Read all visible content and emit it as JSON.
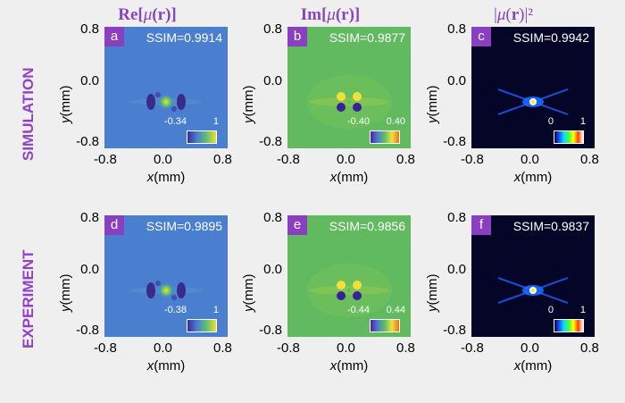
{
  "column_titles": [
    {
      "pre": "Re[",
      "sym": "μ",
      "mid": "(",
      "bold": "r",
      "post": ")]"
    },
    {
      "pre": "Im[",
      "sym": "μ",
      "mid": "(",
      "bold": "r",
      "post": ")]"
    },
    {
      "pre": "|",
      "sym": "μ",
      "mid": "(",
      "bold": "r",
      "post": ")|²"
    }
  ],
  "row_labels": [
    "SIMULATION",
    "EXPERIMENT"
  ],
  "axis": {
    "x_label_var": "x",
    "x_label_unit": "(mm)",
    "y_label_var": "y",
    "y_label_unit": "(mm)",
    "ticks": [
      "0.8",
      "0.0",
      "-0.8"
    ],
    "xticks": [
      "-0.8",
      "0.0",
      "0.8"
    ]
  },
  "panels": [
    {
      "letter": "a",
      "ssim": "SSIM=0.9914",
      "cmin": "-0.34",
      "cmax": "1",
      "kind": "re"
    },
    {
      "letter": "b",
      "ssim": "SSIM=0.9877",
      "cmin": "-0.40",
      "cmax": "0.40",
      "kind": "im"
    },
    {
      "letter": "c",
      "ssim": "SSIM=0.9942",
      "cmin": "0",
      "cmax": "1",
      "kind": "abs"
    },
    {
      "letter": "d",
      "ssim": "SSIM=0.9895",
      "cmin": "-0.38",
      "cmax": "1",
      "kind": "re"
    },
    {
      "letter": "e",
      "ssim": "SSIM=0.9856",
      "cmin": "-0.44",
      "cmax": "0.44",
      "kind": "im"
    },
    {
      "letter": "f",
      "ssim": "SSIM=0.9837",
      "cmin": "0",
      "cmax": "1",
      "kind": "abs"
    }
  ],
  "colors": {
    "re_bg": "#4a7fd0",
    "im_bg": "#61b960",
    "abs_bg": "#050528",
    "letter_bg": "#8a3fc0",
    "title_color": "#8844bb"
  }
}
